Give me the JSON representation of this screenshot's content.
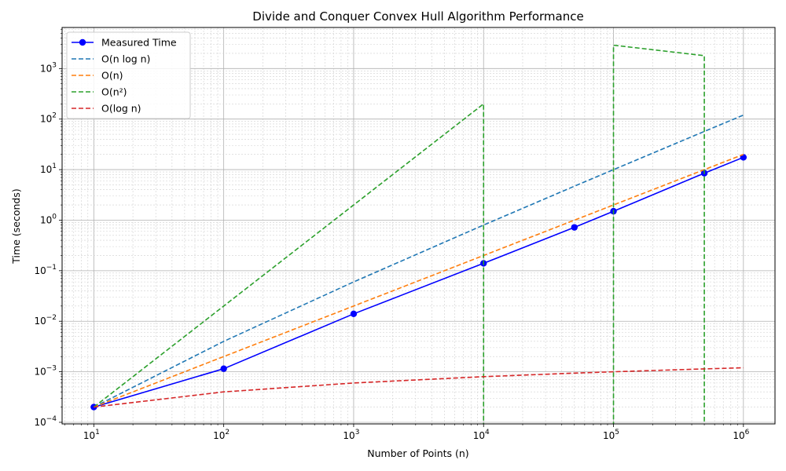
{
  "chart_data": {
    "type": "line",
    "title": "Divide and Conquer Convex Hull Algorithm Performance",
    "xlabel": "Number of Points (n)",
    "ylabel": "Time (seconds)",
    "xscale": "log",
    "yscale": "log",
    "xlim": [
      5.7,
      1750000
    ],
    "ylim": [
      9.3e-05,
      6500
    ],
    "grid": true,
    "grid_minor": true,
    "legend_position": "upper-left",
    "x_ticks": [
      {
        "value": 10,
        "base": "10",
        "exp": "1"
      },
      {
        "value": 100,
        "base": "10",
        "exp": "2"
      },
      {
        "value": 1000,
        "base": "10",
        "exp": "3"
      },
      {
        "value": 10000,
        "base": "10",
        "exp": "4"
      },
      {
        "value": 100000,
        "base": "10",
        "exp": "5"
      },
      {
        "value": 1000000,
        "base": "10",
        "exp": "6"
      }
    ],
    "y_ticks": [
      {
        "value": 0.0001,
        "base": "10",
        "exp": "−4"
      },
      {
        "value": 0.001,
        "base": "10",
        "exp": "−3"
      },
      {
        "value": 0.01,
        "base": "10",
        "exp": "−2"
      },
      {
        "value": 0.1,
        "base": "10",
        "exp": "−1"
      },
      {
        "value": 1,
        "base": "10",
        "exp": "0"
      },
      {
        "value": 10,
        "base": "10",
        "exp": "1"
      },
      {
        "value": 100,
        "base": "10",
        "exp": "2"
      },
      {
        "value": 1000,
        "base": "10",
        "exp": "3"
      }
    ],
    "series": [
      {
        "name": "Measured Time",
        "color": "#0000ff",
        "style": "solid",
        "marker": "circle",
        "x": [
          10,
          100,
          1000,
          10000,
          50000,
          100000,
          500000,
          1000000
        ],
        "y": [
          0.0002,
          0.00115,
          0.014,
          0.14,
          0.72,
          1.5,
          8.5,
          17.5
        ]
      },
      {
        "name": "O(n log n)",
        "color": "#1f77b4",
        "style": "dashed",
        "marker": "none",
        "x": [
          10,
          100,
          1000,
          10000,
          50000,
          100000,
          500000,
          1000000
        ],
        "y": [
          0.0002,
          0.004,
          0.06,
          0.8,
          4.7,
          10,
          57,
          120
        ]
      },
      {
        "name": "O(n)",
        "color": "#ff7f0e",
        "style": "dashed",
        "marker": "none",
        "x": [
          10,
          100,
          1000,
          10000,
          50000,
          100000,
          500000,
          1000000
        ],
        "y": [
          0.0002,
          0.002,
          0.02,
          0.2,
          1.0,
          2.0,
          10,
          20
        ]
      },
      {
        "name": "O(n²)",
        "color": "#2ca02c",
        "style": "dashed",
        "marker": "none",
        "x": [
          10,
          100,
          1000,
          10000,
          10000,
          100000,
          100000,
          500000,
          500000
        ],
        "y": [
          0.0002,
          0.02,
          2.0,
          200,
          1e-05,
          1e-05,
          2900,
          1800,
          1e-05
        ]
      },
      {
        "name": "O(log n)",
        "color": "#d62728",
        "style": "dashed",
        "marker": "none",
        "x": [
          10,
          100,
          1000,
          10000,
          50000,
          100000,
          500000,
          1000000
        ],
        "y": [
          0.0002,
          0.0004,
          0.0006,
          0.0008,
          0.00094,
          0.001,
          0.00114,
          0.0012
        ]
      }
    ]
  }
}
